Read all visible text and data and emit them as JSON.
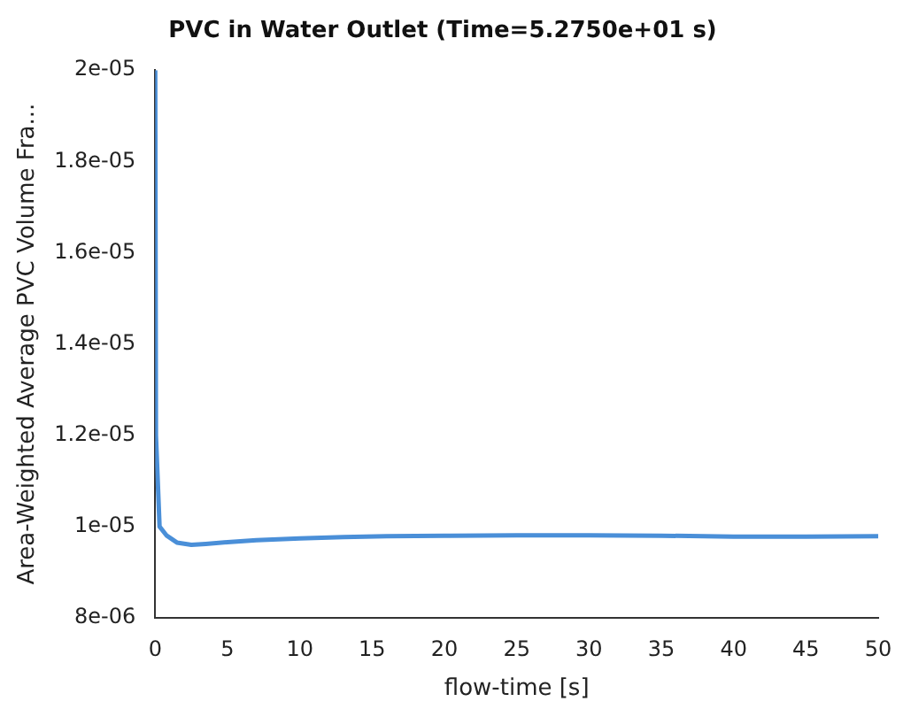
{
  "chart_data": {
    "type": "line",
    "title": "PVC in Water Outlet (Time=5.2750e+01 s)",
    "xlabel": "flow-time [s]",
    "ylabel": "Area-Weighted Average PVC Volume Fra...",
    "series": [
      {
        "color": "#4a8fd8",
        "x": [
          0,
          0.05,
          0.3,
          0.8,
          1.5,
          2.5,
          3.5,
          5,
          7,
          10,
          13,
          16,
          20,
          25,
          30,
          35,
          40,
          45,
          50
        ],
        "values": [
          2e-05,
          1.2e-05,
          1e-05,
          9.8e-06,
          9.65e-06,
          9.6e-06,
          9.62e-06,
          9.66e-06,
          9.7e-06,
          9.74e-06,
          9.77e-06,
          9.79e-06,
          9.8e-06,
          9.81e-06,
          9.81e-06,
          9.8e-06,
          9.78e-06,
          9.78e-06,
          9.79e-06
        ]
      }
    ],
    "xlim": [
      0,
      50
    ],
    "xticks": [
      0,
      5,
      10,
      15,
      20,
      25,
      30,
      35,
      40,
      45,
      50
    ],
    "ylim": [
      8e-06,
      2e-05
    ],
    "yticks": [
      {
        "value": 8e-06,
        "label": "8e-06"
      },
      {
        "value": 1e-05,
        "label": "1e-05"
      },
      {
        "value": 1.2e-05,
        "label": "1.2e-05"
      },
      {
        "value": 1.4e-05,
        "label": "1.4e-05"
      },
      {
        "value": 1.6e-05,
        "label": "1.6e-05"
      },
      {
        "value": 1.8e-05,
        "label": "1.8e-05"
      },
      {
        "value": 2e-05,
        "label": "2e-05"
      }
    ],
    "grid": false,
    "legend": false,
    "marker": "none",
    "line_style": "solid"
  }
}
